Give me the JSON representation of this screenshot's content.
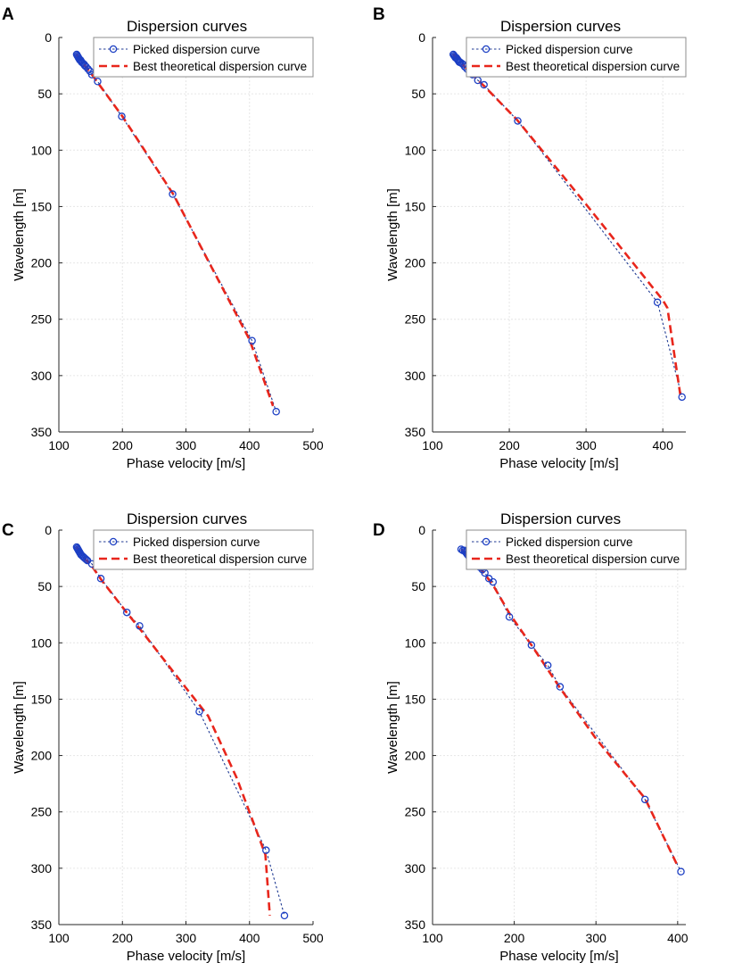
{
  "colors": {
    "picked": "#1c3fc4",
    "theoretical": "#e8261c",
    "grid": "#e6e6e6",
    "axis": "#262626"
  },
  "chart_data": [
    {
      "panel": "A",
      "type": "line",
      "title": "Dispersion curves",
      "xlabel": "Phase velocity [m/s]",
      "ylabel": "Wavelength [m]",
      "xlim": [
        100,
        500
      ],
      "ylim": [
        0,
        350
      ],
      "y_reversed": true,
      "xticks": [
        100,
        200,
        300,
        400,
        500
      ],
      "yticks": [
        0,
        50,
        100,
        150,
        200,
        250,
        300,
        350
      ],
      "grid": true,
      "legend": [
        "Picked dispersion curve",
        "Best theoretical dispersion curve"
      ],
      "legend_position": "top-right",
      "series": [
        {
          "name": "Picked dispersion curve",
          "style": "dotted-with-circles",
          "x": [
            128,
            129,
            130,
            131,
            132,
            133,
            134,
            135,
            136,
            138,
            140,
            141,
            143,
            146,
            149,
            152,
            161,
            199,
            279,
            404,
            442
          ],
          "y": [
            15,
            16,
            17,
            18,
            19,
            20,
            20,
            21,
            22,
            23,
            24,
            25,
            26,
            28,
            30,
            33,
            39,
            70,
            139,
            269,
            332
          ]
        },
        {
          "name": "Best theoretical dispersion curve",
          "style": "dashed",
          "x": [
            128,
            131,
            135,
            141,
            148,
            156,
            165,
            200,
            280,
            400,
            437
          ],
          "y": [
            15,
            18,
            21,
            25,
            30,
            36,
            43,
            70,
            139,
            268,
            327
          ]
        }
      ]
    },
    {
      "panel": "B",
      "type": "line",
      "title": "Dispersion curves",
      "xlabel": "Phase velocity [m/s]",
      "ylabel": "Wavelength [m]",
      "xlim": [
        100,
        430
      ],
      "ylim": [
        0,
        350
      ],
      "y_reversed": true,
      "xticks": [
        100,
        200,
        300,
        400
      ],
      "yticks": [
        0,
        50,
        100,
        150,
        200,
        250,
        300,
        350
      ],
      "grid": true,
      "legend": [
        "Picked dispersion curve",
        "Best theoretical dispersion curve"
      ],
      "legend_position": "top-right",
      "series": [
        {
          "name": "Picked dispersion curve",
          "style": "dotted-with-circles",
          "x": [
            127,
            128,
            129,
            130,
            131,
            132,
            133,
            134,
            135,
            136,
            138,
            140,
            142,
            145,
            152,
            159,
            167,
            211,
            393,
            425
          ],
          "y": [
            15,
            16,
            17,
            18,
            18,
            19,
            20,
            21,
            22,
            22,
            23,
            24,
            26,
            28,
            33,
            38,
            42,
            74,
            235,
            319
          ]
        },
        {
          "name": "Best theoretical dispersion curve",
          "style": "dashed",
          "x": [
            127,
            132,
            138,
            145,
            155,
            170,
            210,
            300,
            400,
            406,
            423
          ],
          "y": [
            15,
            19,
            23,
            28,
            35,
            45,
            73,
            148,
            233,
            240,
            318
          ]
        }
      ]
    },
    {
      "panel": "C",
      "type": "line",
      "title": "Dispersion curves",
      "xlabel": "Phase velocity [m/s]",
      "ylabel": "Wavelength [m]",
      "xlim": [
        100,
        500
      ],
      "ylim": [
        0,
        350
      ],
      "y_reversed": true,
      "xticks": [
        100,
        200,
        300,
        400,
        500
      ],
      "yticks": [
        0,
        50,
        100,
        150,
        200,
        250,
        300,
        350
      ],
      "grid": true,
      "legend": [
        "Picked dispersion curve",
        "Best theoretical dispersion curve"
      ],
      "legend_position": "top-right",
      "series": [
        {
          "name": "Picked dispersion curve",
          "style": "dotted-with-circles",
          "x": [
            128,
            129,
            130,
            131,
            132,
            133,
            134,
            135,
            137,
            139,
            141,
            143,
            145,
            152,
            166,
            207,
            227,
            321,
            426,
            455
          ],
          "y": [
            15,
            16,
            17,
            18,
            19,
            20,
            21,
            22,
            23,
            24,
            25,
            26,
            27,
            30,
            43,
            73,
            85,
            161,
            284,
            342
          ]
        },
        {
          "name": "Best theoretical dispersion curve",
          "style": "dashed",
          "x": [
            128,
            134,
            142,
            152,
            168,
            208,
            228,
            300,
            335,
            380,
            425,
            432
          ],
          "y": [
            15,
            21,
            26,
            32,
            45,
            74,
            88,
            140,
            165,
            220,
            288,
            342
          ]
        }
      ]
    },
    {
      "panel": "D",
      "type": "line",
      "title": "Dispersion curves",
      "xlabel": "Phase velocity [m/s]",
      "ylabel": "Wavelength [m]",
      "xlim": [
        100,
        410
      ],
      "ylim": [
        0,
        350
      ],
      "y_reversed": true,
      "xticks": [
        100,
        200,
        300,
        400
      ],
      "yticks": [
        0,
        50,
        100,
        150,
        200,
        250,
        300,
        350
      ],
      "grid": true,
      "legend": [
        "Picked dispersion curve",
        "Best theoretical dispersion curve"
      ],
      "legend_position": "top-right",
      "series": [
        {
          "name": "Picked dispersion curve",
          "style": "dotted-with-circles",
          "x": [
            135,
            137,
            139,
            140,
            141,
            142,
            143,
            145,
            147,
            149,
            151,
            153,
            156,
            158,
            161,
            164,
            169,
            174,
            194,
            221,
            241,
            256,
            360,
            404
          ],
          "y": [
            17,
            18,
            18,
            19,
            20,
            21,
            22,
            24,
            26,
            28,
            29,
            30,
            32,
            33,
            35,
            38,
            43,
            46,
            77,
            102,
            120,
            139,
            239,
            303
          ]
        },
        {
          "name": "Best theoretical dispersion curve",
          "style": "dashed",
          "x": [
            135,
            140,
            145,
            150,
            158,
            165,
            175,
            195,
            222,
            255,
            300,
            360,
            400
          ],
          "y": [
            17,
            21,
            25,
            29,
            34,
            40,
            50,
            75,
            103,
            139,
            185,
            238,
            298
          ]
        }
      ]
    }
  ]
}
